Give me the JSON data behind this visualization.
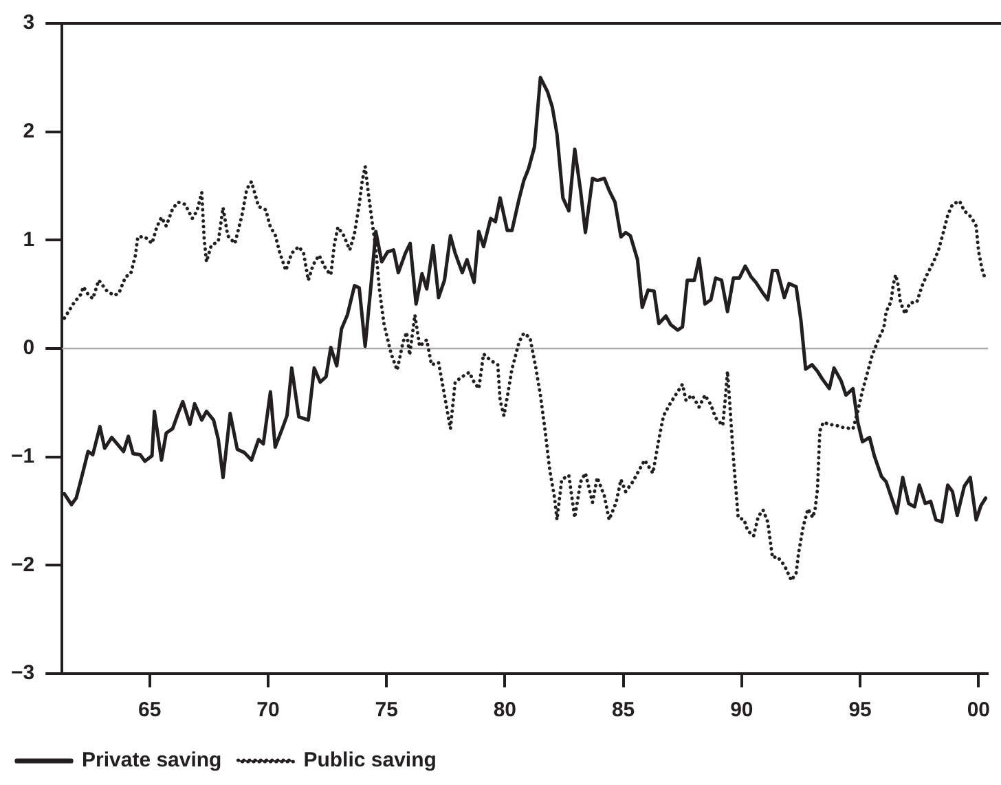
{
  "chart_data": {
    "type": "line",
    "xlim": [
      1961.3,
      2000.4
    ],
    "xticks": [
      {
        "value": 1965,
        "label": "65"
      },
      {
        "value": 1970,
        "label": "70"
      },
      {
        "value": 1975,
        "label": "75"
      },
      {
        "value": 1980,
        "label": "80"
      },
      {
        "value": 1985,
        "label": "85"
      },
      {
        "value": 1990,
        "label": "90"
      },
      {
        "value": 1995,
        "label": "95"
      },
      {
        "value": 2000,
        "label": "00"
      }
    ],
    "ylim": [
      -3,
      3
    ],
    "yticks": [
      {
        "value": -3,
        "label": "−3"
      },
      {
        "value": -2,
        "label": "−2"
      },
      {
        "value": -1,
        "label": "−1"
      },
      0,
      1,
      2,
      3
    ],
    "grid": false,
    "legend": "bottom left",
    "marker": "none",
    "ref_lines": [
      {
        "axis": "y",
        "value": 0,
        "color": "#aaaaaa"
      }
    ],
    "series": [
      {
        "name": "Private saving",
        "color": "#231f20",
        "line_style": "solid",
        "x": [
          1961.4,
          1961.7,
          1961.9,
          1962.15,
          1962.4,
          1962.6,
          1962.9,
          1963.1,
          1963.4,
          1963.9,
          1964.1,
          1964.3,
          1964.6,
          1964.8,
          1965.1,
          1965.2,
          1965.5,
          1965.7,
          1965.97,
          1966.2,
          1966.4,
          1966.7,
          1966.9,
          1967.2,
          1967.4,
          1967.7,
          1967.9,
          1968.1,
          1968.4,
          1968.7,
          1969.0,
          1969.3,
          1969.6,
          1969.8,
          1970.1,
          1970.3,
          1970.6,
          1970.8,
          1971.0,
          1971.3,
          1971.7,
          1971.95,
          1972.2,
          1972.45,
          1972.65,
          1972.9,
          1973.1,
          1973.35,
          1973.65,
          1973.85,
          1974.1,
          1974.35,
          1974.55,
          1974.8,
          1975.04,
          1975.3,
          1975.5,
          1975.8,
          1976.0,
          1976.25,
          1976.5,
          1976.7,
          1976.97,
          1977.2,
          1977.45,
          1977.7,
          1977.9,
          1978.2,
          1978.4,
          1978.7,
          1978.9,
          1979.1,
          1979.4,
          1979.6,
          1979.8,
          1980.1,
          1980.3,
          1980.6,
          1980.8,
          1981.0,
          1981.25,
          1981.5,
          1981.8,
          1982.0,
          1982.2,
          1982.45,
          1982.7,
          1982.95,
          1983.2,
          1983.4,
          1983.7,
          1983.9,
          1984.2,
          1984.4,
          1984.65,
          1984.9,
          1985.1,
          1985.3,
          1985.6,
          1985.8,
          1986.05,
          1986.3,
          1986.5,
          1986.8,
          1987.0,
          1987.3,
          1987.5,
          1987.7,
          1988.0,
          1988.2,
          1988.45,
          1988.7,
          1988.9,
          1989.15,
          1989.4,
          1989.65,
          1989.9,
          1990.15,
          1990.4,
          1990.6,
          1990.9,
          1991.1,
          1991.3,
          1991.5,
          1991.8,
          1992.0,
          1992.3,
          1992.5,
          1992.7,
          1992.97,
          1993.2,
          1993.4,
          1993.7,
          1993.9,
          1994.2,
          1994.4,
          1994.7,
          1994.9,
          1995.1,
          1995.4,
          1995.6,
          1995.9,
          1996.1,
          1996.3,
          1996.55,
          1996.8,
          1997.05,
          1997.3,
          1997.5,
          1997.75,
          1997.98,
          1998.2,
          1998.45,
          1998.7,
          1998.9,
          1999.1,
          1999.4,
          1999.65,
          1999.9,
          2000.1,
          2000.3
        ],
        "values": [
          -1.34,
          -1.44,
          -1.38,
          -1.17,
          -0.95,
          -0.98,
          -0.72,
          -0.92,
          -0.82,
          -0.95,
          -0.81,
          -0.97,
          -0.98,
          -1.04,
          -0.99,
          -0.58,
          -1.03,
          -0.78,
          -0.74,
          -0.6,
          -0.49,
          -0.7,
          -0.51,
          -0.66,
          -0.58,
          -0.66,
          -0.84,
          -1.19,
          -0.6,
          -0.93,
          -0.96,
          -1.03,
          -0.84,
          -0.88,
          -0.4,
          -0.91,
          -0.74,
          -0.62,
          -0.18,
          -0.63,
          -0.66,
          -0.18,
          -0.31,
          -0.26,
          0.01,
          -0.16,
          0.18,
          0.31,
          0.58,
          0.56,
          0.02,
          0.59,
          1.08,
          0.8,
          0.89,
          0.91,
          0.7,
          0.88,
          0.97,
          0.41,
          0.69,
          0.55,
          0.95,
          0.47,
          0.63,
          1.04,
          0.88,
          0.7,
          0.82,
          0.61,
          1.08,
          0.94,
          1.2,
          1.17,
          1.39,
          1.09,
          1.09,
          1.38,
          1.55,
          1.66,
          1.86,
          2.5,
          2.37,
          2.23,
          1.98,
          1.39,
          1.27,
          1.84,
          1.45,
          1.07,
          1.57,
          1.55,
          1.57,
          1.46,
          1.35,
          1.03,
          1.07,
          1.04,
          0.82,
          0.38,
          0.54,
          0.53,
          0.23,
          0.3,
          0.22,
          0.17,
          0.2,
          0.63,
          0.63,
          0.83,
          0.41,
          0.45,
          0.65,
          0.63,
          0.34,
          0.65,
          0.65,
          0.76,
          0.66,
          0.61,
          0.51,
          0.45,
          0.72,
          0.72,
          0.47,
          0.6,
          0.57,
          0.26,
          -0.19,
          -0.15,
          -0.21,
          -0.28,
          -0.37,
          -0.18,
          -0.3,
          -0.43,
          -0.37,
          -0.68,
          -0.86,
          -0.82,
          -0.99,
          -1.18,
          -1.23,
          -1.36,
          -1.52,
          -1.19,
          -1.43,
          -1.46,
          -1.26,
          -1.43,
          -1.41,
          -1.58,
          -1.6,
          -1.26,
          -1.32,
          -1.54,
          -1.27,
          -1.19,
          -1.58,
          -1.45,
          -1.38
        ]
      },
      {
        "name": "Public saving",
        "color": "#231f20",
        "line_style": "dotted",
        "x": [
          1961.4,
          1961.6,
          1961.8,
          1962.1,
          1962.2,
          1962.4,
          1962.6,
          1962.85,
          1963.2,
          1963.5,
          1963.7,
          1963.98,
          1964.2,
          1964.4,
          1964.5,
          1964.8,
          1965.1,
          1965.3,
          1965.5,
          1965.7,
          1965.97,
          1966.2,
          1966.5,
          1966.8,
          1967.0,
          1967.2,
          1967.3,
          1967.4,
          1967.6,
          1967.9,
          1968.1,
          1968.3,
          1968.6,
          1968.9,
          1969.1,
          1969.3,
          1969.6,
          1969.9,
          1970.1,
          1970.3,
          1970.5,
          1970.75,
          1971.0,
          1971.3,
          1971.5,
          1971.7,
          1971.9,
          1972.15,
          1972.45,
          1972.65,
          1972.8,
          1972.95,
          1973.2,
          1973.45,
          1973.65,
          1973.85,
          1973.98,
          1974.1,
          1974.25,
          1974.4,
          1974.55,
          1974.7,
          1974.9,
          1975.2,
          1975.45,
          1975.7,
          1975.85,
          1975.98,
          1976.2,
          1976.4,
          1976.7,
          1976.9,
          1977.2,
          1977.4,
          1977.7,
          1977.9,
          1978.2,
          1978.5,
          1978.7,
          1978.9,
          1979.1,
          1979.4,
          1979.7,
          1979.8,
          1979.96,
          1980.1,
          1980.3,
          1980.6,
          1980.8,
          1981.06,
          1981.3,
          1981.5,
          1981.7,
          1981.9,
          1982.1,
          1982.2,
          1982.4,
          1982.7,
          1982.95,
          1983.2,
          1983.4,
          1983.7,
          1983.9,
          1984.2,
          1984.4,
          1984.7,
          1984.9,
          1985.1,
          1985.4,
          1985.65,
          1985.9,
          1986.25,
          1986.5,
          1986.7,
          1987.0,
          1987.5,
          1987.65,
          1987.9,
          1988.2,
          1988.45,
          1988.7,
          1988.9,
          1989.2,
          1989.3,
          1989.4,
          1989.5,
          1989.65,
          1989.85,
          1990.1,
          1990.25,
          1990.5,
          1990.7,
          1990.9,
          1991.1,
          1991.3,
          1991.5,
          1991.8,
          1992.1,
          1992.3,
          1992.4,
          1992.6,
          1992.8,
          1993.0,
          1993.1,
          1993.2,
          1993.3,
          1993.45,
          1993.7,
          1994.0,
          1994.3,
          1994.7,
          1994.9,
          1995.1,
          1995.3,
          1995.5,
          1995.8,
          1996.0,
          1996.1,
          1996.3,
          1996.4,
          1996.5,
          1996.6,
          1996.7,
          1996.9,
          1997.1,
          1997.4,
          1997.6,
          1997.8,
          1998.1,
          1998.3,
          1998.5,
          1998.7,
          1998.9,
          1999.2,
          1999.4,
          1999.7,
          1999.9,
          2000.0,
          2000.15,
          2000.3
        ],
        "values": [
          0.28,
          0.35,
          0.42,
          0.5,
          0.57,
          0.5,
          0.46,
          0.63,
          0.53,
          0.49,
          0.51,
          0.66,
          0.69,
          0.86,
          1.03,
          1.03,
          0.97,
          1.12,
          1.21,
          1.13,
          1.29,
          1.35,
          1.33,
          1.2,
          1.27,
          1.44,
          1.02,
          0.8,
          0.95,
          0.99,
          1.3,
          1.04,
          0.97,
          1.23,
          1.47,
          1.54,
          1.31,
          1.28,
          1.12,
          1.05,
          0.88,
          0.72,
          0.88,
          0.94,
          0.88,
          0.63,
          0.77,
          0.86,
          0.73,
          0.68,
          0.96,
          1.12,
          1.04,
          0.91,
          1.06,
          1.33,
          1.55,
          1.68,
          1.41,
          1.16,
          0.92,
          0.55,
          0.22,
          -0.05,
          -0.2,
          0.06,
          0.15,
          -0.06,
          0.31,
          0.02,
          0.08,
          -0.15,
          -0.13,
          -0.37,
          -0.74,
          -0.31,
          -0.26,
          -0.22,
          -0.31,
          -0.37,
          -0.05,
          -0.11,
          -0.15,
          -0.48,
          -0.62,
          -0.45,
          -0.19,
          0.06,
          0.14,
          0.1,
          -0.17,
          -0.43,
          -0.76,
          -1.13,
          -1.38,
          -1.58,
          -1.21,
          -1.17,
          -1.56,
          -1.23,
          -1.15,
          -1.42,
          -1.19,
          -1.36,
          -1.58,
          -1.42,
          -1.21,
          -1.32,
          -1.23,
          -1.13,
          -1.03,
          -1.15,
          -0.84,
          -0.62,
          -0.5,
          -0.33,
          -0.48,
          -0.43,
          -0.54,
          -0.43,
          -0.52,
          -0.64,
          -0.71,
          -0.48,
          -0.21,
          -0.52,
          -1.01,
          -1.56,
          -1.58,
          -1.68,
          -1.73,
          -1.55,
          -1.49,
          -1.6,
          -1.93,
          -1.92,
          -2.0,
          -2.14,
          -2.07,
          -1.89,
          -1.64,
          -1.48,
          -1.56,
          -1.48,
          -1.3,
          -0.76,
          -0.68,
          -0.7,
          -0.71,
          -0.73,
          -0.74,
          -0.58,
          -0.39,
          -0.23,
          -0.07,
          0.1,
          0.19,
          0.34,
          0.43,
          0.59,
          0.68,
          0.59,
          0.43,
          0.32,
          0.42,
          0.43,
          0.57,
          0.67,
          0.8,
          0.9,
          1.06,
          1.23,
          1.33,
          1.36,
          1.27,
          1.21,
          1.13,
          0.9,
          0.73,
          0.63
        ]
      }
    ]
  }
}
